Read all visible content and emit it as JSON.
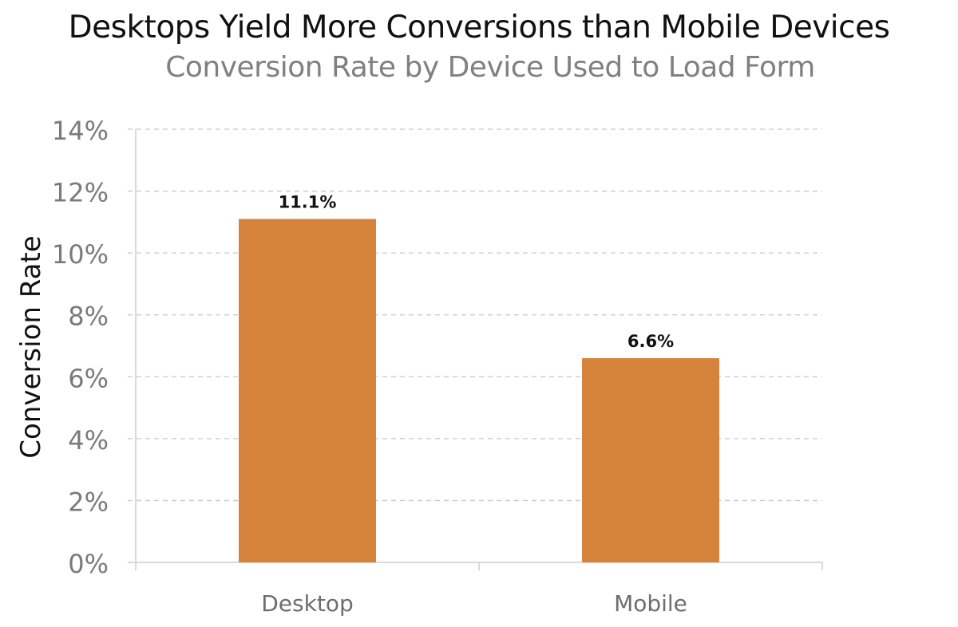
{
  "chart_data": {
    "type": "bar",
    "title": "Desktops Yield More Conversions than Mobile Devices",
    "subtitle": "Conversion Rate by Device Used to Load Form",
    "xlabel": "",
    "ylabel": "Conversion Rate",
    "categories": [
      "Desktop",
      "Mobile"
    ],
    "values": [
      11.1,
      6.6
    ],
    "data_labels": [
      "11.1%",
      "6.6%"
    ],
    "ylim": [
      0,
      14
    ],
    "yticks": [
      0,
      2,
      4,
      6,
      8,
      10,
      12,
      14
    ],
    "ytick_labels": [
      "0%",
      "2%",
      "4%",
      "6%",
      "8%",
      "10%",
      "12%",
      "14%"
    ],
    "grid": true,
    "bar_color": "#D6843C"
  }
}
